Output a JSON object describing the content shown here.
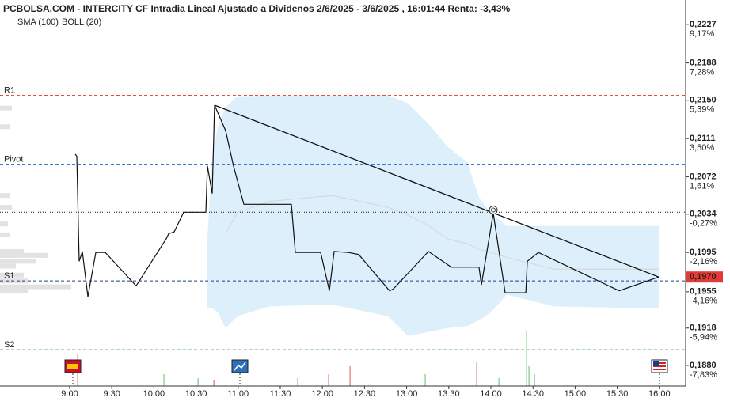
{
  "chart_data": {
    "type": "line",
    "title": "PCBOLSA.COM - INTERCITY CF Intradia Lineal Ajustado a Dividenos 2/6/2025 - 3/6/2025 , 16:01:44 Renta: -3,43%",
    "color": "#111111",
    "x": [
      9.066,
      9.085,
      9.113,
      9.15,
      9.216,
      9.31,
      9.423,
      9.789,
      10.147,
      10.175,
      10.241,
      10.353,
      10.617,
      10.635,
      10.692,
      10.72,
      10.852,
      10.945,
      11.068,
      11.632,
      11.679,
      11.979,
      12.083,
      12.139,
      12.308,
      12.43,
      12.797,
      12.844,
      13.258,
      13.53,
      13.859,
      13.887,
      14.028,
      14.169,
      14.414,
      14.432,
      14.564,
      15.523,
      15.992
    ],
    "values": [
      0.2095,
      0.2093,
      0.1986,
      0.1996,
      0.195,
      0.1995,
      0.1995,
      0.1961,
      0.2009,
      0.2014,
      0.2016,
      0.2036,
      0.2036,
      0.2083,
      0.2055,
      0.2145,
      0.2119,
      0.2083,
      0.2044,
      0.2044,
      0.1995,
      0.1995,
      0.1956,
      0.1996,
      0.1995,
      0.1993,
      0.1956,
      0.1958,
      0.1996,
      0.198,
      0.198,
      0.1962,
      0.2035,
      0.1954,
      0.1954,
      0.1986,
      0.1995,
      0.1956,
      0.197
    ],
    "trendline": {
      "color": "#111111",
      "x": [
        10.72,
        15.992
      ],
      "values": [
        0.2145,
        0.197
      ]
    },
    "bollinger": {
      "name": "BOLL (20)",
      "color": "#d6d6d6",
      "fill": "#ddeffa",
      "x": [
        10.635,
        10.692,
        10.758,
        10.852,
        10.992,
        11.368,
        12.12,
        12.778,
        13.013,
        13.248,
        13.483,
        13.718,
        13.859,
        14.0,
        14.188,
        14.752,
        15.992
      ],
      "upper": [
        0.201,
        0.2091,
        0.2123,
        0.2143,
        0.2154,
        0.2155,
        0.2155,
        0.2155,
        0.2147,
        0.2127,
        0.2103,
        0.2087,
        0.2051,
        0.2035,
        0.2022,
        0.2022,
        0.2022
      ],
      "lower": [
        0.1938,
        0.1938,
        0.1934,
        0.1918,
        0.193,
        0.194,
        0.1942,
        0.193,
        0.191,
        0.1914,
        0.1918,
        0.192,
        0.1926,
        0.1934,
        0.1952,
        0.194,
        0.1938
      ]
    },
    "sma": {
      "name": "SMA (100)",
      "color": "#a9d9f2",
      "x": [
        10.852,
        10.992,
        11.368,
        12.12,
        12.778,
        13.013,
        13.248,
        13.483,
        13.718,
        13.859,
        14.0,
        14.188,
        14.752,
        15.992
      ],
      "values": [
        0.2014,
        0.2036,
        0.2047,
        0.2053,
        0.2041,
        0.2033,
        0.2023,
        0.2009,
        0.2004,
        0.1998,
        0.1995,
        0.199,
        0.1978,
        0.1978
      ]
    },
    "levels": [
      {
        "name": "R1",
        "value": 0.2155,
        "color": "#e34a4a",
        "text_color": "#e34a4a"
      },
      {
        "name": "Pivot",
        "value": 0.2085,
        "color": "#3a7bd5",
        "text_color": "#3a7bd5"
      },
      {
        "name": "S1",
        "value": 0.1966,
        "color": "#1f3c8c",
        "text_color": "#2e9a55"
      },
      {
        "name": "S2",
        "value": 0.1896,
        "color": "#2e9a55",
        "text_color": "#2e9a55"
      }
    ],
    "reference_line": 0.2036,
    "last": {
      "value": 0.197,
      "label": "0,1970",
      "color": "#e53935"
    },
    "volume": {
      "x": [
        9.094,
        10.118,
        10.523,
        10.711,
        11.707,
        12.073,
        12.327,
        13.22,
        13.831,
        14.094,
        14.423,
        14.451,
        14.517
      ],
      "values": [
        40,
        15,
        10,
        8,
        10,
        15,
        25,
        15,
        30,
        10,
        70,
        25,
        15
      ],
      "colors": [
        "#e57373",
        "#81c784",
        "#81c784",
        "#e57373",
        "#e57373",
        "#e57373",
        "#e57373",
        "#81c784",
        "#e57373",
        "#81c784",
        "#81c784",
        "#81c784",
        "#81c784"
      ]
    },
    "volume_profile": {
      "prices": [
        0.2142,
        0.2123,
        0.2053,
        0.2041,
        0.2024,
        0.2013,
        0.1996,
        0.1992,
        0.1986,
        0.1981,
        0.1972,
        0.1966,
        0.196,
        0.1956
      ],
      "values": [
        15,
        12,
        12,
        15,
        10,
        12,
        30,
        60,
        45,
        20,
        30,
        35,
        90,
        35
      ],
      "color": "#e2e2e2"
    },
    "xlim": [
      8.173,
      16.312
    ],
    "ylim": [
      0.1859,
      0.2236
    ],
    "xticks": [
      {
        "value": 9,
        "label": "9:00"
      },
      {
        "value": 9.5,
        "label": "9:30"
      },
      {
        "value": 10,
        "label": "10:00"
      },
      {
        "value": 10.5,
        "label": "10:30"
      },
      {
        "value": 11,
        "label": "11:00"
      },
      {
        "value": 11.5,
        "label": "11:30"
      },
      {
        "value": 12,
        "label": "12:00"
      },
      {
        "value": 12.5,
        "label": "12:30"
      },
      {
        "value": 13,
        "label": "13:00"
      },
      {
        "value": 13.5,
        "label": "13:30"
      },
      {
        "value": 14,
        "label": "14:00"
      },
      {
        "value": 14.5,
        "label": "14:30"
      },
      {
        "value": 15,
        "label": "15:00"
      },
      {
        "value": 15.5,
        "label": "15:30"
      },
      {
        "value": 16,
        "label": "16:00"
      }
    ],
    "yticks": [
      {
        "value": 0.2227,
        "label": "0,2227",
        "change": "9,17%"
      },
      {
        "value": 0.2188,
        "label": "0,2188",
        "change": "7,28%"
      },
      {
        "value": 0.215,
        "label": "0,2150",
        "change": "5,39%"
      },
      {
        "value": 0.2111,
        "label": "0,2111",
        "change": "3,50%"
      },
      {
        "value": 0.2072,
        "label": "0,2072",
        "change": "1,61%"
      },
      {
        "value": 0.2034,
        "label": "0,2034",
        "change": "-0,27%"
      },
      {
        "value": 0.1995,
        "label": "0,1995",
        "change": "-2,16%"
      },
      {
        "value": 0.1955,
        "label": "0,1955",
        "change": "-4,16%"
      },
      {
        "value": 0.1918,
        "label": "0,1918",
        "change": "-5,94%"
      },
      {
        "value": 0.188,
        "label": "0,1880",
        "change": "-7,83%"
      }
    ],
    "up_color": "#2e9a55",
    "down_color": "#e04040"
  }
}
